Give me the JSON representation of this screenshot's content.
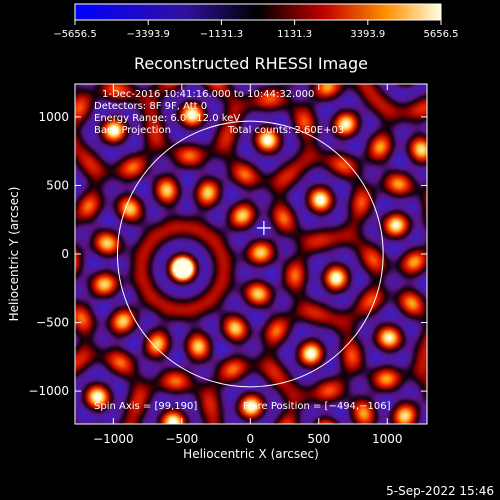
{
  "colorbar": {
    "ticks": [
      "−5656.5",
      "−3393.9",
      "−1131.3",
      "1131.3",
      "3393.9",
      "5656.5"
    ],
    "range": [
      -5656.5,
      5656.5
    ]
  },
  "title": "Reconstructed RHESSI Image",
  "info": {
    "time": "1-Dec-2016 10:41:16.000 to 10:44:32.000",
    "detectors": "Detectors: 8F 9F, Att 0",
    "energy": "Energy Range: 6.0 - 12.0 keV",
    "method": "Back Projection",
    "counts": "Total counts: 2.60E+03"
  },
  "footer": {
    "spin_axis": "Spin Axis = [99,190]",
    "flare_position": "Flare Position = [−494,−106]"
  },
  "axes": {
    "xlabel": "Heliocentric X (arcsec)",
    "ylabel": "Heliocentric Y (arcsec)",
    "xlim": [
      -1280,
      1290
    ],
    "ylim": [
      -1240,
      1240
    ],
    "xticks": [
      {
        "value": -1000,
        "label": "−1000"
      },
      {
        "value": -500,
        "label": "−500"
      },
      {
        "value": 0,
        "label": "0"
      },
      {
        "value": 500,
        "label": "500"
      },
      {
        "value": 1000,
        "label": "1000"
      }
    ],
    "yticks": [
      {
        "value": 1000,
        "label": "1000"
      },
      {
        "value": 500,
        "label": "500"
      },
      {
        "value": 0,
        "label": "0"
      },
      {
        "value": -500,
        "label": "−500"
      },
      {
        "value": -1000,
        "label": "−1000"
      }
    ]
  },
  "image": {
    "source_x": -494,
    "source_y": -106,
    "solar_radius": 970,
    "center_mark": [
      99,
      190
    ]
  },
  "timestamp": "5-Sep-2022 15:46"
}
